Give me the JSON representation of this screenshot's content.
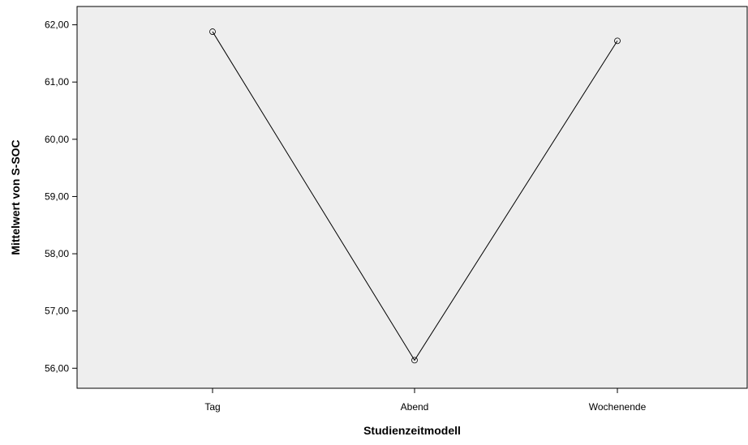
{
  "chart_data": {
    "type": "line",
    "title": "",
    "xlabel": "Studienzeitmodell",
    "ylabel": "Mittelwert von S-SOC",
    "categories": [
      "Tag",
      "Abend",
      "Wochenende"
    ],
    "series": [
      {
        "values": [
          61.88,
          56.14,
          61.72
        ]
      }
    ],
    "ylim": [
      55.65,
      62.32
    ],
    "yticks": [
      56,
      57,
      58,
      59,
      60,
      61,
      62
    ],
    "ytick_labels": [
      "56,00",
      "57,00",
      "58,00",
      "59,00",
      "60,00",
      "61,00",
      "62,00"
    ],
    "grid": false,
    "marker": "open-circle",
    "colors": {
      "plot_background": "#eeeeee",
      "line": "#000000",
      "axis": "#000000"
    }
  }
}
